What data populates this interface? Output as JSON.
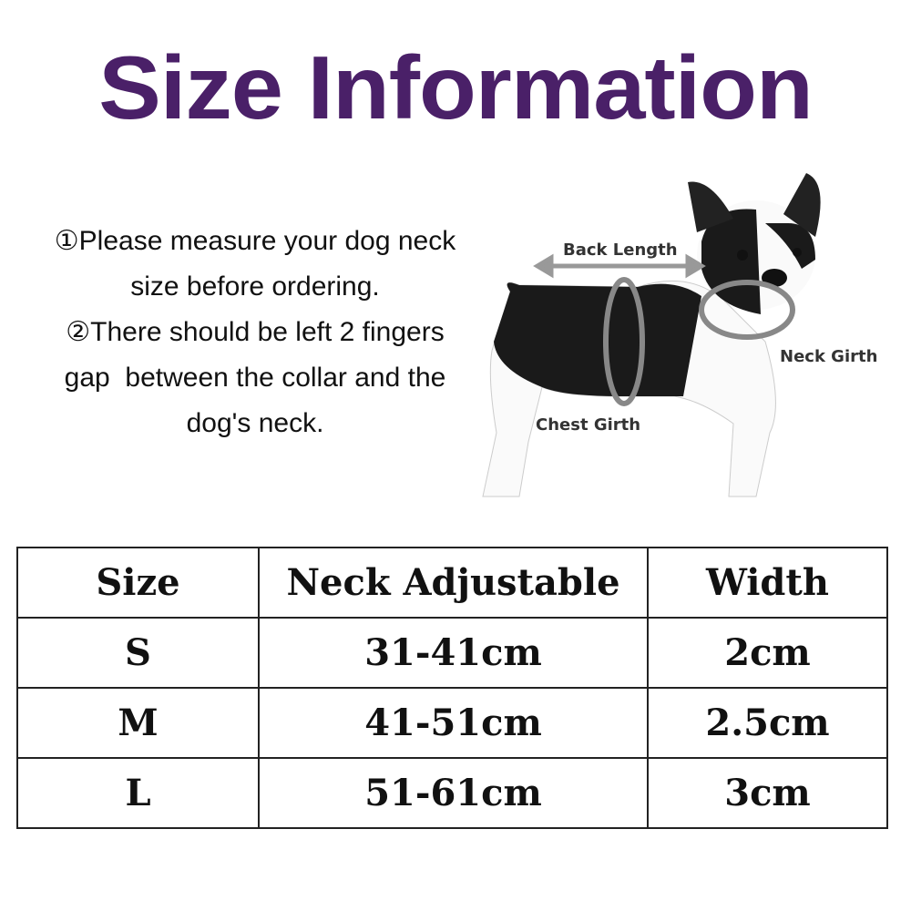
{
  "title": "Size Information",
  "instructions": [
    "①Please measure your dog neck",
    "size before ordering.",
    "②There should be left 2 fingers",
    "gap  between the collar and the",
    "dog's neck."
  ],
  "diagram_labels": {
    "back_length": "Back Length",
    "neck_girth": "Neck Girth",
    "chest_girth": "Chest Girth"
  },
  "colors": {
    "title": "#4a2068"
  },
  "table": {
    "headers": [
      "Size",
      "Neck Adjustable",
      "Width"
    ],
    "rows": [
      [
        "S",
        "31-41cm",
        "2cm"
      ],
      [
        "M",
        "41-51cm",
        "2.5cm"
      ],
      [
        "L",
        "51-61cm",
        "3cm"
      ]
    ]
  }
}
